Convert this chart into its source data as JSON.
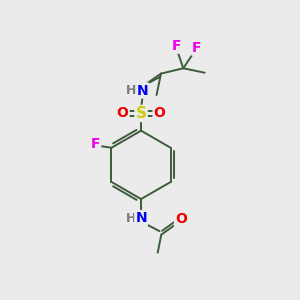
{
  "bg_color": "#ebebeb",
  "bond_color": "#3d5c3a",
  "atom_colors": {
    "F": "#ee00ee",
    "N": "#0000ee",
    "O": "#ee0000",
    "S": "#cccc00",
    "H": "#7a7a7a",
    "C": "#3d5c3a"
  }
}
